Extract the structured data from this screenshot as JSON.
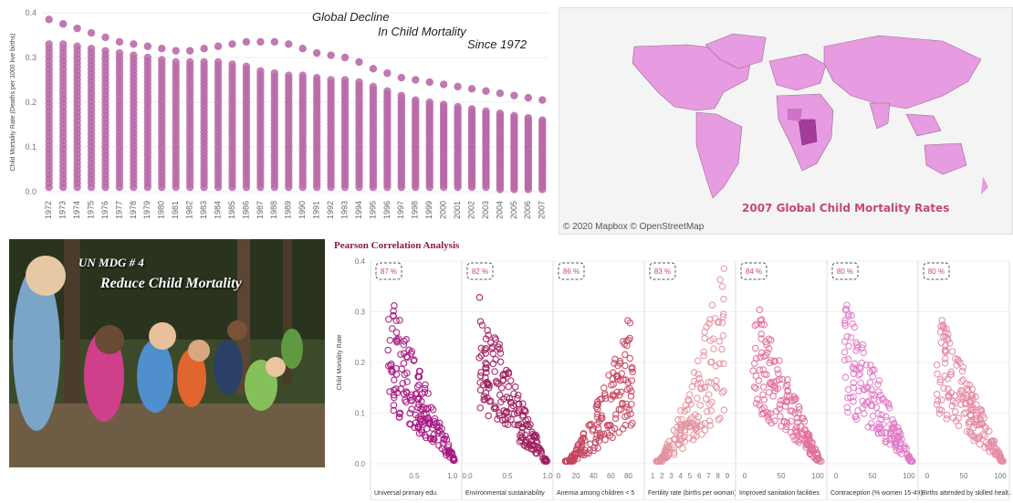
{
  "top_chart": {
    "title_lines": [
      "Global Decline",
      "In Child Mortality",
      "Since 1972"
    ],
    "ylabel": "Child Mortality Rate (Deaths per 1000 live births)",
    "y_ticks": [
      "0.0",
      "0.1",
      "0.2",
      "0.3",
      "0.4"
    ],
    "dot_color": "#b96aa8"
  },
  "map": {
    "title": "2007 Global Child Mortality Rates",
    "credit": "© 2020 Mapbox © OpenStreetMap",
    "land_color": "#e79be0",
    "dark_color": "#a43a9a"
  },
  "photo": {
    "line1": "UN MDG # 4",
    "line2": "Reduce Child Mortality"
  },
  "correlation": {
    "title": "Pearson Correlation Analysis",
    "ylabel": "Child Mortality Rate",
    "y_ticks": [
      "0.0",
      "0.1",
      "0.2",
      "0.3",
      "0.4"
    ]
  },
  "chart_data": [
    {
      "type": "scatter",
      "title": "Global Decline In Child Mortality Since 1972",
      "xlabel": "",
      "ylabel": "Child Mortality Rate (Deaths per 1000 live births)",
      "ylim": [
        0,
        0.4
      ],
      "x": [
        "1972",
        "1973",
        "1974",
        "1975",
        "1976",
        "1977",
        "1978",
        "1979",
        "1980",
        "1981",
        "1982",
        "1983",
        "1984",
        "1985",
        "1986",
        "1987",
        "1988",
        "1989",
        "1990",
        "1991",
        "1992",
        "1993",
        "1994",
        "1995",
        "1996",
        "1997",
        "1998",
        "1999",
        "2000",
        "2001",
        "2002",
        "2003",
        "2004",
        "2005",
        "2006",
        "2007"
      ],
      "max_values": [
        0.385,
        0.375,
        0.365,
        0.355,
        0.345,
        0.335,
        0.33,
        0.325,
        0.32,
        0.315,
        0.315,
        0.32,
        0.325,
        0.33,
        0.335,
        0.335,
        0.335,
        0.33,
        0.32,
        0.31,
        0.305,
        0.3,
        0.29,
        0.275,
        0.265,
        0.255,
        0.25,
        0.245,
        0.24,
        0.235,
        0.23,
        0.225,
        0.22,
        0.215,
        0.21,
        0.205
      ],
      "upper_values": [
        0.33,
        0.33,
        0.325,
        0.32,
        0.315,
        0.31,
        0.305,
        0.3,
        0.295,
        0.29,
        0.29,
        0.29,
        0.29,
        0.285,
        0.28,
        0.27,
        0.265,
        0.26,
        0.26,
        0.255,
        0.25,
        0.25,
        0.245,
        0.235,
        0.225,
        0.215,
        0.205,
        0.2,
        0.195,
        0.19,
        0.185,
        0.18,
        0.175,
        0.17,
        0.165,
        0.16
      ],
      "min_values": [
        0.01,
        0.01,
        0.01,
        0.01,
        0.01,
        0.01,
        0.01,
        0.01,
        0.01,
        0.01,
        0.01,
        0.01,
        0.01,
        0.01,
        0.01,
        0.01,
        0.01,
        0.01,
        0.01,
        0.01,
        0.01,
        0.01,
        0.01,
        0.01,
        0.01,
        0.01,
        0.01,
        0.01,
        0.01,
        0.01,
        0.01,
        0.01,
        0.005,
        0.005,
        0.005,
        0.005
      ]
    },
    {
      "type": "scatter",
      "title": "Pearson Correlation Analysis",
      "ylabel": "Child Mortality Rate",
      "ylim": [
        0,
        0.4
      ],
      "panels": [
        {
          "xlabel": "Universal primary edu.",
          "corr_label": "87 %",
          "x_ticks": [
            "0.5",
            "1.0"
          ],
          "xlim": [
            0,
            1.05
          ],
          "color": "#a4157f",
          "trend": "neg",
          "y_max": 0.33
        },
        {
          "xlabel": "Environmental sustainability",
          "corr_label": "82 %",
          "x_ticks": [
            "0.0",
            "0.5",
            "1.0"
          ],
          "xlim": [
            0,
            1.0
          ],
          "color": "#9e1a5c",
          "trend": "neg",
          "y_max": 0.32
        },
        {
          "xlabel": "Anemia among children < 5",
          "corr_label": "86 %",
          "x_ticks": [
            "0",
            "20",
            "40",
            "60",
            "80"
          ],
          "xlim": [
            0,
            92
          ],
          "color": "#c4445f",
          "trend": "pos",
          "y_max": 0.31
        },
        {
          "xlabel": "Fertility rate (births per woman)",
          "corr_label": "83 %",
          "x_ticks": [
            "1",
            "2",
            "3",
            "4",
            "5",
            "6",
            "7",
            "8",
            "9"
          ],
          "xlim": [
            0.7,
            9.3
          ],
          "color": "#e2939d",
          "trend": "pos",
          "y_max": 0.39
        },
        {
          "xlabel": "Improved sanitation facilities",
          "corr_label": "84 %",
          "x_ticks": [
            "0",
            "50",
            "100"
          ],
          "xlim": [
            -5,
            105
          ],
          "color": "#e0709c",
          "trend": "neg",
          "y_max": 0.33
        },
        {
          "xlabel": "Contraception (% women 15-49)",
          "corr_label": "80 %",
          "x_ticks": [
            "0",
            "50",
            "100"
          ],
          "xlim": [
            -5,
            105
          ],
          "color": "#e07bc6",
          "trend": "neg",
          "y_max": 0.32
        },
        {
          "xlabel": "Births attended by skilled healt..",
          "corr_label": "80 %",
          "x_ticks": [
            "0",
            "50",
            "100"
          ],
          "xlim": [
            -5,
            105
          ],
          "color": "#e48aa3",
          "trend": "neg",
          "y_max": 0.31
        }
      ]
    }
  ]
}
